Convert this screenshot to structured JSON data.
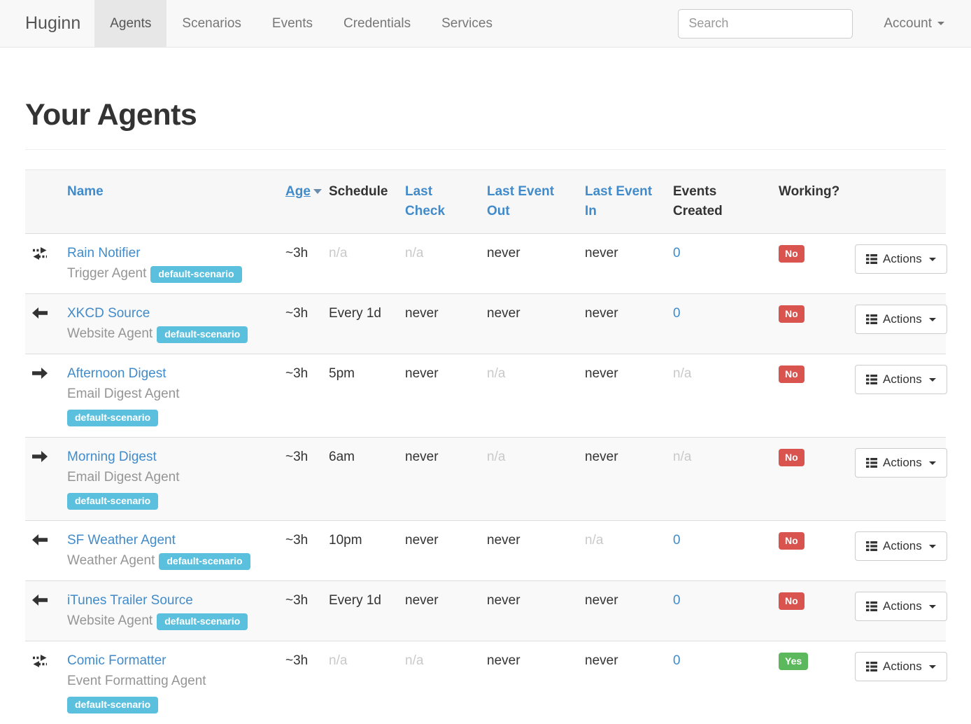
{
  "navbar": {
    "brand": "Huginn",
    "items": [
      {
        "label": "Agents",
        "active": true
      },
      {
        "label": "Scenarios",
        "active": false
      },
      {
        "label": "Events",
        "active": false
      },
      {
        "label": "Credentials",
        "active": false
      },
      {
        "label": "Services",
        "active": false
      }
    ],
    "search_placeholder": "Search",
    "account_label": "Account"
  },
  "page": {
    "title": "Your Agents"
  },
  "colors": {
    "link_blue": "#428bca",
    "badge_info": "#5bc0de",
    "badge_danger": "#d9534f",
    "badge_success": "#5cb85c",
    "stripe": "#f9f9f9"
  },
  "table": {
    "headers": {
      "name": "Name",
      "age": "Age",
      "schedule": "Schedule",
      "last_check": "Last Check",
      "last_event_out": "Last Event Out",
      "last_event_in": "Last Event In",
      "events_created": "Events Created",
      "working": "Working?"
    },
    "sorted_by": "age",
    "actions_label": "Actions",
    "rows": [
      {
        "icon": "bidirectional-arrows-icon",
        "name": "Rain Notifier",
        "agent_type": "Trigger Agent",
        "scenario_badge": "default-scenario",
        "badge_break": false,
        "cells": {
          "age": {
            "text": "~3h",
            "style": "normal"
          },
          "schedule": {
            "text": "n/a",
            "style": "muted"
          },
          "last_check": {
            "text": "n/a",
            "style": "muted"
          },
          "last_event_out": {
            "text": "never",
            "style": "normal"
          },
          "last_event_in": {
            "text": "never",
            "style": "normal"
          },
          "events_created": {
            "text": "0",
            "style": "link"
          }
        },
        "working": {
          "text": "No",
          "status": "danger"
        }
      },
      {
        "icon": "arrow-left-icon",
        "name": "XKCD Source",
        "agent_type": "Website Agent",
        "scenario_badge": "default-scenario",
        "badge_break": false,
        "cells": {
          "age": {
            "text": "~3h",
            "style": "normal"
          },
          "schedule": {
            "text": "Every 1d",
            "style": "normal"
          },
          "last_check": {
            "text": "never",
            "style": "normal"
          },
          "last_event_out": {
            "text": "never",
            "style": "normal"
          },
          "last_event_in": {
            "text": "never",
            "style": "normal"
          },
          "events_created": {
            "text": "0",
            "style": "link"
          }
        },
        "working": {
          "text": "No",
          "status": "danger"
        }
      },
      {
        "icon": "arrow-right-icon",
        "name": "Afternoon Digest",
        "agent_type": "Email Digest Agent",
        "scenario_badge": "default-scenario",
        "badge_break": true,
        "cells": {
          "age": {
            "text": "~3h",
            "style": "normal"
          },
          "schedule": {
            "text": "5pm",
            "style": "normal"
          },
          "last_check": {
            "text": "never",
            "style": "normal"
          },
          "last_event_out": {
            "text": "n/a",
            "style": "muted"
          },
          "last_event_in": {
            "text": "never",
            "style": "normal"
          },
          "events_created": {
            "text": "n/a",
            "style": "muted"
          }
        },
        "working": {
          "text": "No",
          "status": "danger"
        }
      },
      {
        "icon": "arrow-right-icon",
        "name": "Morning Digest",
        "agent_type": "Email Digest Agent",
        "scenario_badge": "default-scenario",
        "badge_break": true,
        "cells": {
          "age": {
            "text": "~3h",
            "style": "normal"
          },
          "schedule": {
            "text": "6am",
            "style": "normal"
          },
          "last_check": {
            "text": "never",
            "style": "normal"
          },
          "last_event_out": {
            "text": "n/a",
            "style": "muted"
          },
          "last_event_in": {
            "text": "never",
            "style": "normal"
          },
          "events_created": {
            "text": "n/a",
            "style": "muted"
          }
        },
        "working": {
          "text": "No",
          "status": "danger"
        }
      },
      {
        "icon": "arrow-left-icon",
        "name": "SF Weather Agent",
        "agent_type": "Weather Agent",
        "scenario_badge": "default-scenario",
        "badge_break": false,
        "cells": {
          "age": {
            "text": "~3h",
            "style": "normal"
          },
          "schedule": {
            "text": "10pm",
            "style": "normal"
          },
          "last_check": {
            "text": "never",
            "style": "normal"
          },
          "last_event_out": {
            "text": "never",
            "style": "normal"
          },
          "last_event_in": {
            "text": "n/a",
            "style": "muted"
          },
          "events_created": {
            "text": "0",
            "style": "link"
          }
        },
        "working": {
          "text": "No",
          "status": "danger"
        }
      },
      {
        "icon": "arrow-left-icon",
        "name": "iTunes Trailer Source",
        "agent_type": "Website Agent",
        "scenario_badge": "default-scenario",
        "badge_break": false,
        "cells": {
          "age": {
            "text": "~3h",
            "style": "normal"
          },
          "schedule": {
            "text": "Every 1d",
            "style": "normal"
          },
          "last_check": {
            "text": "never",
            "style": "normal"
          },
          "last_event_out": {
            "text": "never",
            "style": "normal"
          },
          "last_event_in": {
            "text": "never",
            "style": "normal"
          },
          "events_created": {
            "text": "0",
            "style": "link"
          }
        },
        "working": {
          "text": "No",
          "status": "danger"
        }
      },
      {
        "icon": "bidirectional-arrows-icon",
        "name": "Comic Formatter",
        "agent_type": "Event Formatting Agent",
        "scenario_badge": "default-scenario",
        "badge_break": true,
        "cells": {
          "age": {
            "text": "~3h",
            "style": "normal"
          },
          "schedule": {
            "text": "n/a",
            "style": "muted"
          },
          "last_check": {
            "text": "n/a",
            "style": "muted"
          },
          "last_event_out": {
            "text": "never",
            "style": "normal"
          },
          "last_event_in": {
            "text": "never",
            "style": "normal"
          },
          "events_created": {
            "text": "0",
            "style": "link"
          }
        },
        "working": {
          "text": "Yes",
          "status": "success"
        }
      }
    ]
  }
}
